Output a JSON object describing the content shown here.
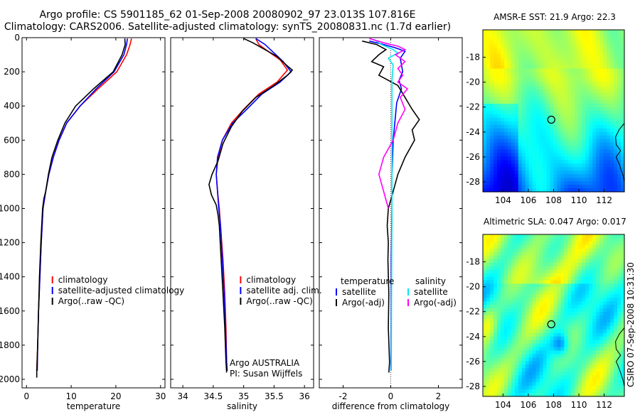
{
  "title": {
    "line1": "Argo profile: CS 5901185_62 01-Sep-2008 20080902_97 23.013S 107.816E",
    "line2": "Climatology: CARS2006. Satellite-adjusted climatology: synTS_20080831.nc (1.7d earlier)"
  },
  "credit": "CSIRO 07-Sep-2008 10:31:30",
  "colors": {
    "climatology": "#ff0000",
    "satellite": "#0000ff",
    "argo": "#000000",
    "satellite_sal": "#00e5ee",
    "argo_sal": "#ff00ff"
  },
  "chart_data": [
    {
      "type": "line",
      "id": "temperature",
      "xlabel": "temperature",
      "xlim": [
        -1,
        31
      ],
      "ylim": [
        2050,
        0
      ],
      "xticks": [
        "0",
        "10",
        "20",
        "30"
      ],
      "yticks": [
        "0",
        "200",
        "400",
        "600",
        "800",
        "1000",
        "1200",
        "1400",
        "1600",
        "1800",
        "2000"
      ],
      "legend": [
        "climatology",
        "satellite-adjusted climatology",
        "Argo(..raw -QC)"
      ],
      "series": [
        {
          "name": "climatology",
          "color": "#ff0000",
          "points": [
            [
              23.5,
              5
            ],
            [
              23.2,
              40
            ],
            [
              22.4,
              100
            ],
            [
              20.2,
              200
            ],
            [
              16,
              300
            ],
            [
              12,
              400
            ],
            [
              9,
              500
            ],
            [
              7.3,
              600
            ],
            [
              6,
              700
            ],
            [
              5,
              800
            ],
            [
              4.3,
              900
            ],
            [
              3.7,
              1000
            ],
            [
              3.3,
              1200
            ],
            [
              3,
              1400
            ],
            [
              2.7,
              1600
            ],
            [
              2.5,
              1800
            ],
            [
              2.3,
              1950
            ]
          ]
        },
        {
          "name": "satellite-adjusted climatology",
          "color": "#0000ff",
          "points": [
            [
              22.6,
              5
            ],
            [
              22.4,
              40
            ],
            [
              21.8,
              100
            ],
            [
              19.6,
              200
            ],
            [
              15.6,
              300
            ],
            [
              12,
              400
            ],
            [
              9,
              500
            ],
            [
              7.3,
              600
            ],
            [
              6,
              700
            ],
            [
              5,
              800
            ],
            [
              4.3,
              900
            ],
            [
              3.7,
              1000
            ],
            [
              3.3,
              1200
            ],
            [
              3,
              1400
            ],
            [
              2.7,
              1600
            ],
            [
              2.5,
              1800
            ],
            [
              2.4,
              1950
            ]
          ]
        },
        {
          "name": "Argo(..raw -QC)",
          "color": "#000000",
          "points": [
            [
              22,
              5
            ],
            [
              22.1,
              40
            ],
            [
              21.4,
              100
            ],
            [
              19.4,
              200
            ],
            [
              15,
              300
            ],
            [
              11,
              400
            ],
            [
              8.6,
              500
            ],
            [
              7,
              600
            ],
            [
              5.7,
              700
            ],
            [
              4.9,
              800
            ],
            [
              4.3,
              900
            ],
            [
              3.9,
              940
            ],
            [
              3.6,
              1000
            ],
            [
              3.2,
              1200
            ],
            [
              2.9,
              1400
            ],
            [
              2.7,
              1600
            ],
            [
              2.5,
              1800
            ],
            [
              2.3,
              1950
            ],
            [
              2.3,
              1990
            ]
          ]
        }
      ]
    },
    {
      "type": "line",
      "id": "salinity",
      "xlabel": "salinity",
      "xlim": [
        33.8,
        36.15
      ],
      "ylim": [
        2050,
        0
      ],
      "xticks": [
        "34",
        "34.5",
        "35",
        "35.5",
        "36"
      ],
      "yticks": [],
      "legend": [
        "climatology",
        "satellite adj. clim.",
        "Argo(..raw -QC)"
      ],
      "annotation": [
        "Argo AUSTRALIA",
        "PI: Susan Wijffels"
      ],
      "series": [
        {
          "name": "climatology",
          "color": "#ff0000",
          "points": [
            [
              35.2,
              5
            ],
            [
              35.25,
              40
            ],
            [
              35.4,
              80
            ],
            [
              35.6,
              130
            ],
            [
              35.72,
              190
            ],
            [
              35.55,
              260
            ],
            [
              35.25,
              330
            ],
            [
              35,
              420
            ],
            [
              34.8,
              500
            ],
            [
              34.65,
              600
            ],
            [
              34.58,
              700
            ],
            [
              34.55,
              800
            ],
            [
              34.57,
              900
            ],
            [
              34.6,
              1000
            ],
            [
              34.62,
              1100
            ],
            [
              34.66,
              1300
            ],
            [
              34.69,
              1500
            ],
            [
              34.71,
              1700
            ],
            [
              34.72,
              1900
            ],
            [
              34.73,
              1950
            ]
          ]
        },
        {
          "name": "satellite adj. clim.",
          "color": "#0000ff",
          "points": [
            [
              35.2,
              5
            ],
            [
              35.35,
              40
            ],
            [
              35.5,
              90
            ],
            [
              35.65,
              140
            ],
            [
              35.78,
              200
            ],
            [
              35.6,
              260
            ],
            [
              35.3,
              330
            ],
            [
              35.05,
              420
            ],
            [
              34.82,
              500
            ],
            [
              34.65,
              600
            ],
            [
              34.57,
              700
            ],
            [
              34.55,
              800
            ],
            [
              34.57,
              900
            ],
            [
              34.59,
              1000
            ],
            [
              34.62,
              1100
            ],
            [
              34.65,
              1300
            ],
            [
              34.68,
              1500
            ],
            [
              34.7,
              1700
            ],
            [
              34.72,
              1900
            ],
            [
              34.73,
              1950
            ]
          ]
        },
        {
          "name": "Argo(..raw -QC)",
          "color": "#000000",
          "points": [
            [
              35.0,
              5
            ],
            [
              35.15,
              30
            ],
            [
              35.35,
              70
            ],
            [
              35.55,
              110
            ],
            [
              35.7,
              160
            ],
            [
              35.8,
              190
            ],
            [
              35.72,
              220
            ],
            [
              35.5,
              280
            ],
            [
              35.2,
              350
            ],
            [
              34.98,
              430
            ],
            [
              34.8,
              520
            ],
            [
              34.66,
              620
            ],
            [
              34.58,
              720
            ],
            [
              34.48,
              800
            ],
            [
              34.43,
              860
            ],
            [
              34.47,
              920
            ],
            [
              34.55,
              980
            ],
            [
              34.58,
              1040
            ],
            [
              34.6,
              1100
            ],
            [
              34.63,
              1300
            ],
            [
              34.66,
              1500
            ],
            [
              34.69,
              1700
            ],
            [
              34.71,
              1900
            ],
            [
              34.72,
              1960
            ]
          ]
        }
      ]
    },
    {
      "type": "line",
      "id": "difference",
      "xlabel": "difference from climatology",
      "xlim": [
        -3,
        3
      ],
      "ylim": [
        2050,
        0
      ],
      "xticks": [
        "-2",
        "0",
        "2"
      ],
      "yticks": [],
      "legend_left_title": "temperature",
      "legend_right_title": "salinity",
      "legend_left": [
        "satellite",
        "Argo(-adj)"
      ],
      "legend_right": [
        "satellite",
        "Argo(-adj)"
      ],
      "series": [
        {
          "name": "satellite (temperature)",
          "color": "#0000ff",
          "points": [
            [
              -0.9,
              20
            ],
            [
              -0.3,
              40
            ],
            [
              0.2,
              60
            ],
            [
              0.6,
              80
            ],
            [
              0.4,
              120
            ],
            [
              0.5,
              200
            ],
            [
              0.35,
              250
            ],
            [
              0.45,
              300
            ],
            [
              0.25,
              380
            ],
            [
              0.1,
              600
            ],
            [
              0.05,
              800
            ],
            [
              0.05,
              1000
            ],
            [
              0.02,
              1300
            ],
            [
              0.02,
              1600
            ],
            [
              0.01,
              1950
            ]
          ]
        },
        {
          "name": "Argo(-adj) (temperature)",
          "color": "#000000",
          "points": [
            [
              -1.2,
              20
            ],
            [
              -0.6,
              40
            ],
            [
              -0.2,
              70
            ],
            [
              -0.5,
              100
            ],
            [
              -0.8,
              140
            ],
            [
              -0.3,
              170
            ],
            [
              -0.5,
              220
            ],
            [
              0.3,
              280
            ],
            [
              0.6,
              350
            ],
            [
              0.9,
              420
            ],
            [
              1.2,
              480
            ],
            [
              0.9,
              540
            ],
            [
              1.0,
              600
            ],
            [
              0.6,
              700
            ],
            [
              0.3,
              800
            ],
            [
              0.1,
              900
            ],
            [
              -0.1,
              1000
            ],
            [
              -0.15,
              1100
            ],
            [
              -0.1,
              1200
            ],
            [
              -0.12,
              1300
            ],
            [
              -0.08,
              1500
            ],
            [
              -0.1,
              1700
            ],
            [
              -0.05,
              1900
            ],
            [
              -0.08,
              1960
            ]
          ]
        },
        {
          "name": "satellite (salinity)",
          "color": "#00e5ee",
          "points": [
            [
              -0.7,
              10
            ],
            [
              -0.4,
              40
            ],
            [
              0.1,
              70
            ],
            [
              0.3,
              90
            ],
            [
              -0.1,
              120
            ],
            [
              0.1,
              160
            ],
            [
              0.05,
              250
            ],
            [
              0.05,
              400
            ],
            [
              0.05,
              700
            ],
            [
              0.05,
              1000
            ],
            [
              0.04,
              1300
            ],
            [
              0.03,
              1600
            ],
            [
              0.02,
              1950
            ]
          ]
        },
        {
          "name": "Argo(-adj) (salinity)",
          "color": "#ff00ff",
          "points": [
            [
              -0.9,
              5
            ],
            [
              -0.3,
              30
            ],
            [
              0.3,
              50
            ],
            [
              0.6,
              70
            ],
            [
              0.2,
              100
            ],
            [
              0.6,
              140
            ],
            [
              0.3,
              180
            ],
            [
              0.5,
              220
            ],
            [
              0.3,
              260
            ],
            [
              0.7,
              300
            ],
            [
              0.4,
              350
            ],
            [
              0.6,
              420
            ],
            [
              0.3,
              500
            ],
            [
              0.1,
              600
            ],
            [
              -0.3,
              700
            ],
            [
              -0.5,
              800
            ],
            [
              -0.3,
              900
            ],
            [
              -0.1,
              1000
            ]
          ]
        }
      ]
    },
    {
      "type": "heatmap",
      "id": "amsre-sst",
      "title": "AMSR-E SST: 21.9 Argo: 22.3",
      "xlim": [
        102.4,
        113.6
      ],
      "ylim": [
        -28.8,
        -15.8
      ],
      "xticks": [
        "104",
        "106",
        "108",
        "110",
        "112"
      ],
      "yticks": [
        "-18",
        "-20",
        "-22",
        "-24",
        "-26",
        "-28"
      ],
      "marker": [
        107.816,
        -23.013
      ]
    },
    {
      "type": "heatmap",
      "id": "altimetric-sla",
      "title": "Altimetric SLA: 0.047 Argo: 0.017",
      "xlim": [
        102.4,
        113.6
      ],
      "ylim": [
        -28.8,
        -15.8
      ],
      "xticks": [
        "104",
        "106",
        "108",
        "110",
        "112"
      ],
      "yticks": [
        "-18",
        "-20",
        "-22",
        "-24",
        "-26",
        "-28"
      ],
      "marker": [
        107.816,
        -23.013
      ]
    }
  ]
}
